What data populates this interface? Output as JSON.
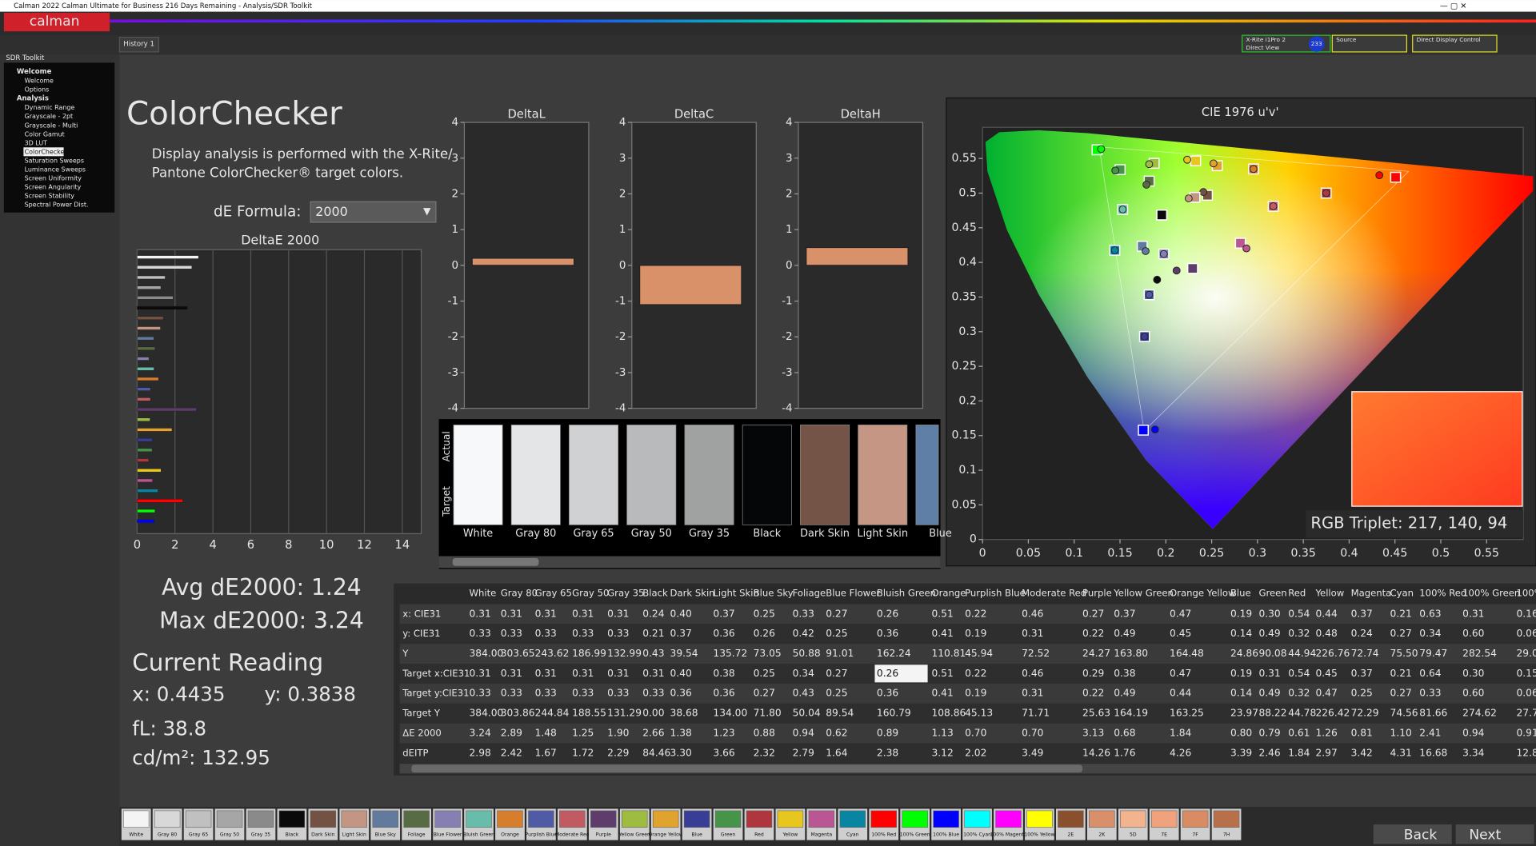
{
  "window": {
    "title": "Calman 2022 Calman Ultimate for Business 216 Days Remaining - Analysis/SDR Toolkit",
    "logo": "calman"
  },
  "tabs": [
    "History 1"
  ],
  "devices": [
    "X-Rite i1Pro 2",
    "Direct View",
    "233",
    "Source",
    "Direct Display Control"
  ],
  "sidebar": {
    "title": "SDR Toolkit",
    "groups": [
      {
        "name": "Welcome",
        "items": [
          "Welcome",
          "Options"
        ]
      },
      {
        "name": "Analysis",
        "items": [
          "Dynamic Range",
          "Grayscale - 2pt",
          "Grayscale - Multi",
          "Color Gamut",
          "3D LUT",
          "ColorChecker",
          "Saturation Sweeps",
          "Luminance Sweeps",
          "Screen Uniformity",
          "Screen Angularity",
          "Screen Stability",
          "Spectral Power Dist."
        ]
      }
    ]
  },
  "page": {
    "title": "ColorChecker",
    "description": [
      "Display analysis is performed with the X-Rite/",
      "Pantone ColorChecker® target colors."
    ],
    "formula_label": "dE Formula:",
    "formula": "2000"
  },
  "stats": {
    "avg": "Avg dE2000: 1.24",
    "max": "Max dE2000: 3.24",
    "current": "Current Reading",
    "x": "x: 0.4435",
    "y": "y: 0.3838",
    "fl": "fL: 38.8",
    "cd": "cd/m²: 132.95"
  },
  "deltae_chart": {
    "title": "DeltaE 2000",
    "xlim": [
      0,
      15
    ],
    "xticks": [
      0,
      2,
      4,
      6,
      8,
      10,
      12,
      14
    ]
  },
  "delta_axis": {
    "ylim": [
      -4,
      4
    ],
    "yticks": [
      -4,
      -3,
      -2,
      -1,
      0,
      1,
      2,
      3,
      4
    ]
  },
  "delta_charts": [
    {
      "title": "DeltaL",
      "value": 0.2,
      "color": "#d9916a"
    },
    {
      "title": "DeltaC",
      "value": -1.1,
      "color": "#d9916a"
    },
    {
      "title": "DeltaH",
      "value": 0.5,
      "color": "#d9916a"
    }
  ],
  "swatches": {
    "row_labels": [
      "Actual",
      "Target"
    ],
    "items": [
      {
        "name": "White",
        "color": "#f6f8fa"
      },
      {
        "name": "Gray 80",
        "color": "#e3e5e6"
      },
      {
        "name": "Gray 65",
        "color": "#cfd1d2"
      },
      {
        "name": "Gray 50",
        "color": "#b9babb"
      },
      {
        "name": "Gray 35",
        "color": "#a0a1a1"
      },
      {
        "name": "Black",
        "color": "#050608"
      },
      {
        "name": "Dark Skin",
        "color": "#735446"
      },
      {
        "name": "Light Skin",
        "color": "#c59683"
      },
      {
        "name": "Blue",
        "color": "#5f7fa6"
      }
    ]
  },
  "cie": {
    "title": "CIE 1976 u'v'",
    "xlim": [
      0,
      0.59
    ],
    "ylim": [
      0,
      0.595
    ],
    "xticks": [
      0,
      0.05,
      0.1,
      0.15,
      0.2,
      0.25,
      0.3,
      0.35,
      0.4,
      0.45,
      0.5,
      0.55
    ],
    "yticks": [
      0,
      0.05,
      0.1,
      0.15,
      0.2,
      0.25,
      0.3,
      0.35,
      0.4,
      0.45,
      0.5,
      0.55
    ],
    "rgb": "RGB Triplet: 217, 140, 94"
  },
  "table": {
    "header": [
      "White",
      "Gray 80",
      "Gray 65",
      "Gray 50",
      "Gray 35",
      "Black",
      "Dark Skin",
      "Light Skin",
      "Blue Sky",
      "Foliage",
      "Blue Flower",
      "Bluish Green",
      "Orange",
      "Purplish Blue",
      "Moderate Red",
      "Purple",
      "Yellow Green",
      "Orange Yellow",
      "Blue",
      "Green",
      "Red",
      "Yellow",
      "Magenta",
      "Cyan",
      "100% Red",
      "100% Green",
      "100%"
    ],
    "rows": [
      {
        "label": "x: CIE31",
        "cells": [
          "0.31",
          "0.31",
          "0.31",
          "0.31",
          "0.31",
          "0.24",
          "0.40",
          "0.37",
          "0.25",
          "0.33",
          "0.27",
          "0.26",
          "0.51",
          "0.22",
          "0.46",
          "0.27",
          "0.37",
          "0.47",
          "0.19",
          "0.30",
          "0.54",
          "0.44",
          "0.37",
          "0.21",
          "0.63",
          "0.31",
          "0.16"
        ]
      },
      {
        "label": "y: CIE31",
        "cells": [
          "0.33",
          "0.33",
          "0.33",
          "0.33",
          "0.33",
          "0.21",
          "0.37",
          "0.36",
          "0.26",
          "0.42",
          "0.25",
          "0.36",
          "0.41",
          "0.19",
          "0.31",
          "0.22",
          "0.49",
          "0.45",
          "0.14",
          "0.49",
          "0.32",
          "0.48",
          "0.24",
          "0.27",
          "0.34",
          "0.60",
          "0.06"
        ]
      },
      {
        "label": "Y",
        "cells": [
          "384.00",
          "303.65",
          "243.62",
          "186.99",
          "132.99",
          "0.43",
          "39.54",
          "135.72",
          "73.05",
          "50.88",
          "91.01",
          "162.24",
          "110.81",
          "45.94",
          "72.52",
          "24.27",
          "163.80",
          "164.48",
          "24.86",
          "90.08",
          "44.94",
          "226.76",
          "72.74",
          "75.50",
          "79.47",
          "282.54",
          "29.0"
        ]
      },
      {
        "label": "Target x:CIE31",
        "cells": [
          "0.31",
          "0.31",
          "0.31",
          "0.31",
          "0.31",
          "0.31",
          "0.40",
          "0.38",
          "0.25",
          "0.34",
          "0.27",
          "0.26",
          "0.51",
          "0.22",
          "0.46",
          "0.29",
          "0.38",
          "0.47",
          "0.19",
          "0.31",
          "0.54",
          "0.45",
          "0.37",
          "0.21",
          "0.64",
          "0.30",
          "0.15"
        ]
      },
      {
        "label": "Target y:CIE31",
        "cells": [
          "0.33",
          "0.33",
          "0.33",
          "0.33",
          "0.33",
          "0.33",
          "0.36",
          "0.36",
          "0.27",
          "0.43",
          "0.25",
          "0.36",
          "0.41",
          "0.19",
          "0.31",
          "0.22",
          "0.49",
          "0.44",
          "0.14",
          "0.49",
          "0.32",
          "0.47",
          "0.25",
          "0.27",
          "0.33",
          "0.60",
          "0.06"
        ]
      },
      {
        "label": "Target Y",
        "cells": [
          "384.00",
          "303.86",
          "244.84",
          "188.55",
          "131.29",
          "0.00",
          "38.68",
          "134.00",
          "71.80",
          "50.04",
          "89.54",
          "160.79",
          "108.86",
          "45.13",
          "71.71",
          "25.63",
          "164.19",
          "163.25",
          "23.97",
          "88.22",
          "44.78",
          "226.42",
          "72.29",
          "74.56",
          "81.66",
          "274.62",
          "27.7"
        ]
      },
      {
        "label": "ΔE 2000",
        "cells": [
          "3.24",
          "2.89",
          "1.48",
          "1.25",
          "1.90",
          "2.66",
          "1.38",
          "1.23",
          "0.88",
          "0.94",
          "0.62",
          "0.89",
          "1.13",
          "0.70",
          "0.70",
          "3.13",
          "0.68",
          "1.84",
          "0.80",
          "0.79",
          "0.61",
          "1.26",
          "0.81",
          "1.10",
          "2.41",
          "0.94",
          "0.91"
        ]
      },
      {
        "label": "dEITP",
        "cells": [
          "2.98",
          "2.42",
          "1.67",
          "1.72",
          "2.29",
          "84.46",
          "3.30",
          "3.66",
          "2.32",
          "2.79",
          "1.64",
          "2.38",
          "3.12",
          "2.02",
          "3.49",
          "14.26",
          "1.76",
          "4.26",
          "3.39",
          "2.46",
          "1.84",
          "2.97",
          "3.42",
          "4.31",
          "16.68",
          "3.34",
          "12.8"
        ]
      }
    ]
  },
  "patches": {
    "items": [
      {
        "name": "White",
        "color": "#f4f4f4"
      },
      {
        "name": "Gray 80",
        "color": "#d8d8d8"
      },
      {
        "name": "Gray 65",
        "color": "#c0c0c0"
      },
      {
        "name": "Gray 50",
        "color": "#a6a6a6"
      },
      {
        "name": "Gray 35",
        "color": "#8a8a8a"
      },
      {
        "name": "Black",
        "color": "#0a0a0a"
      },
      {
        "name": "Dark Skin",
        "color": "#735244"
      },
      {
        "name": "Light Skin",
        "color": "#c29682"
      },
      {
        "name": "Blue Sky",
        "color": "#627a9d"
      },
      {
        "name": "Foliage",
        "color": "#576c43"
      },
      {
        "name": "Blue Flower",
        "color": "#8580b1"
      },
      {
        "name": "Bluish Green",
        "color": "#67bdaa"
      },
      {
        "name": "Orange",
        "color": "#d67e2c"
      },
      {
        "name": "Purplish Blue",
        "color": "#505ba6"
      },
      {
        "name": "Moderate Red",
        "color": "#c15a63"
      },
      {
        "name": "Purple",
        "color": "#5e3c6c"
      },
      {
        "name": "Yellow Green",
        "color": "#9dbc40"
      },
      {
        "name": "Orange Yellow",
        "color": "#e0a32e"
      },
      {
        "name": "Blue",
        "color": "#383d96"
      },
      {
        "name": "Green",
        "color": "#469449"
      },
      {
        "name": "Red",
        "color": "#af363c"
      },
      {
        "name": "Yellow",
        "color": "#e7c71f"
      },
      {
        "name": "Magenta",
        "color": "#bb5695"
      },
      {
        "name": "Cyan",
        "color": "#0885a1"
      },
      {
        "name": "100% Red",
        "color": "#ff0000"
      },
      {
        "name": "100% Green",
        "color": "#00ff00"
      },
      {
        "name": "100% Blue",
        "color": "#0000ff"
      },
      {
        "name": "100% Cyan",
        "color": "#00ffff"
      },
      {
        "name": "100% Magenta",
        "color": "#ff00ff"
      },
      {
        "name": "100% Yellow",
        "color": "#ffff00"
      },
      {
        "name": "2E",
        "color": "#8a4f2c"
      },
      {
        "name": "2K",
        "color": "#d9906a"
      },
      {
        "name": "5D",
        "color": "#f2b48f"
      },
      {
        "name": "7E",
        "color": "#f0a27c"
      },
      {
        "name": "7F",
        "color": "#d98c64"
      },
      {
        "name": "7H",
        "color": "#b8704a"
      }
    ],
    "back": "Back",
    "next": "Next"
  }
}
